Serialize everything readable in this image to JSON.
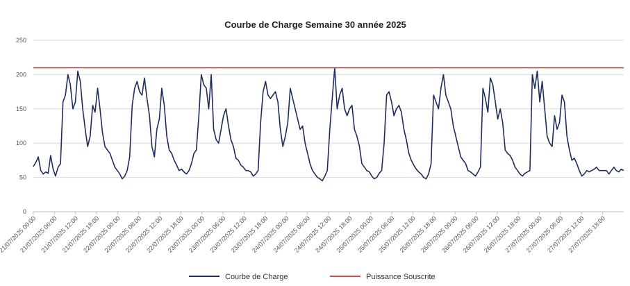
{
  "chart_data": {
    "type": "line",
    "title": "Courbe de Charge Semaine 30 année 2025",
    "xlabel": "",
    "ylabel": "",
    "ylim": [
      0,
      250
    ],
    "yticks": [
      0,
      50,
      100,
      150,
      200,
      250
    ],
    "grid": true,
    "legend_position": "bottom",
    "x_start": "21/07/2025 00:00",
    "x_step_hours": 1,
    "x_tick_labels": [
      "21/07/2025 00:00",
      "21/07/2025 06:00",
      "21/07/2025 12:00",
      "21/07/2025 18:00",
      "22/07/2025 00:00",
      "22/07/2025 06:00",
      "22/07/2025 12:00",
      "22/07/2025 18:00",
      "23/07/2025 00:00",
      "23/07/2025 06:00",
      "23/07/2025 12:00",
      "23/07/2025 18:00",
      "24/07/2025 00:00",
      "24/07/2025 06:00",
      "24/07/2025 12:00",
      "24/07/2025 18:00",
      "25/07/2025 00:00",
      "25/07/2025 06:00",
      "25/07/2025 12:00",
      "25/07/2025 18:00",
      "26/07/2025 00:00",
      "26/07/2025 06:00",
      "26/07/2025 12:00",
      "26/07/2025 18:00",
      "27/07/2025 00:00",
      "27/07/2025 06:00",
      "27/07/2025 12:00",
      "27/07/2025 18:00"
    ],
    "series": [
      {
        "name": "Courbe de Charge",
        "color": "#1f2d5c",
        "values": [
          66,
          72,
          80,
          60,
          55,
          58,
          56,
          82,
          62,
          52,
          65,
          70,
          160,
          170,
          200,
          185,
          150,
          160,
          205,
          190,
          150,
          120,
          95,
          110,
          155,
          145,
          180,
          150,
          115,
          95,
          90,
          85,
          75,
          65,
          60,
          55,
          48,
          52,
          60,
          80,
          155,
          180,
          190,
          175,
          170,
          195,
          165,
          140,
          95,
          80,
          120,
          135,
          180,
          155,
          110,
          90,
          85,
          75,
          68,
          60,
          62,
          58,
          55,
          60,
          70,
          85,
          90,
          140,
          200,
          185,
          180,
          150,
          200,
          120,
          105,
          100,
          120,
          140,
          150,
          125,
          105,
          95,
          78,
          75,
          68,
          65,
          60,
          60,
          58,
          52,
          55,
          60,
          130,
          175,
          190,
          170,
          165,
          170,
          175,
          160,
          120,
          95,
          110,
          130,
          180,
          165,
          150,
          135,
          120,
          125,
          100,
          85,
          70,
          60,
          55,
          50,
          48,
          45,
          52,
          60,
          120,
          165,
          210,
          150,
          170,
          180,
          150,
          140,
          150,
          155,
          120,
          110,
          95,
          70,
          65,
          60,
          58,
          52,
          48,
          50,
          56,
          60,
          100,
          170,
          175,
          160,
          140,
          150,
          155,
          145,
          120,
          105,
          85,
          75,
          68,
          62,
          58,
          55,
          50,
          48,
          55,
          70,
          170,
          160,
          150,
          180,
          200,
          170,
          160,
          150,
          125,
          110,
          95,
          80,
          75,
          70,
          60,
          58,
          55,
          52,
          58,
          65,
          180,
          165,
          145,
          195,
          185,
          160,
          135,
          150,
          130,
          90,
          85,
          82,
          75,
          65,
          60,
          55,
          52,
          56,
          58,
          60,
          200,
          180,
          205,
          160,
          190,
          150,
          110,
          100,
          95,
          140,
          120,
          130,
          170,
          160,
          110,
          90,
          75,
          78,
          70,
          60,
          52,
          55,
          60,
          58,
          60,
          62,
          65,
          60,
          60,
          60,
          60,
          55,
          60,
          65,
          60,
          58,
          62,
          60
        ]
      },
      {
        "name": "Puissance Souscrite",
        "color": "#c0504d",
        "constant_value": 210
      }
    ]
  },
  "legend": {
    "items": [
      "Courbe de Charge",
      "Puissance Souscrite"
    ]
  }
}
